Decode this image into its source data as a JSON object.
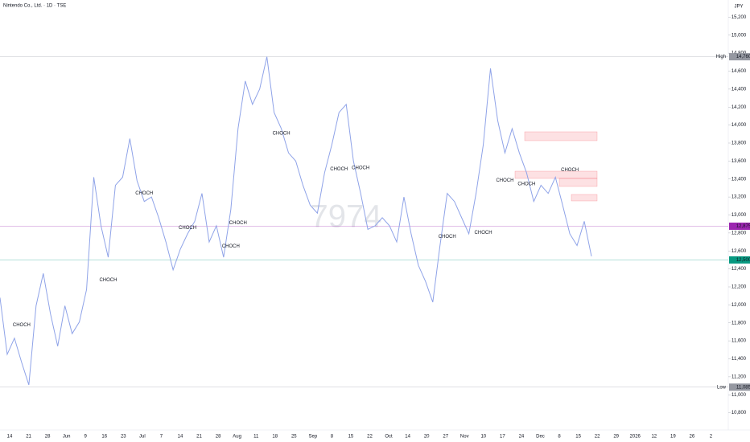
{
  "chart_data": {
    "type": "line",
    "title": "Nintendo Co., Ltd. · 1D · TSE",
    "watermark": "7974",
    "currency": "JPY",
    "color": "#8fa3e8",
    "values": [
      12080,
      11450,
      11630,
      11360,
      11110,
      11990,
      12350,
      11900,
      11540,
      11990,
      11680,
      11810,
      12170,
      13420,
      12880,
      12530,
      13330,
      13420,
      13850,
      13380,
      13150,
      13200,
      12970,
      12700,
      12390,
      12620,
      12790,
      12930,
      13240,
      12700,
      12880,
      12530,
      13060,
      13960,
      14490,
      14230,
      14400,
      14760,
      14140,
      13960,
      13690,
      13600,
      13330,
      13110,
      13020,
      13470,
      13780,
      14140,
      14230,
      13600,
      13240,
      12840,
      12880,
      12970,
      12880,
      12700,
      13200,
      12790,
      12440,
      12260,
      12030,
      12660,
      13240,
      13150,
      12970,
      12790,
      13240,
      13780,
      14630,
      14050,
      13690,
      13960,
      13690,
      13470,
      13150,
      13330,
      13240,
      13420,
      13110,
      12790,
      12660,
      12930,
      12540
    ],
    "ylim": [
      10600,
      15400
    ],
    "yticks": [
      {
        "value": 10800,
        "label": "10,800"
      },
      {
        "value": 11000,
        "label": "11,000"
      },
      {
        "value": 11200,
        "label": "11,200"
      },
      {
        "value": 11400,
        "label": "11,400"
      },
      {
        "value": 11600,
        "label": "11,600"
      },
      {
        "value": 11800,
        "label": "11,800"
      },
      {
        "value": 12000,
        "label": "12,000"
      },
      {
        "value": 12200,
        "label": "12,200"
      },
      {
        "value": 12400,
        "label": "12,400"
      },
      {
        "value": 12600,
        "label": "12,600"
      },
      {
        "value": 12800,
        "label": "12,800"
      },
      {
        "value": 13000,
        "label": "13,000"
      },
      {
        "value": 13200,
        "label": "13,200"
      },
      {
        "value": 13400,
        "label": "13,400"
      },
      {
        "value": 13600,
        "label": "13,600"
      },
      {
        "value": 13800,
        "label": "13,800"
      },
      {
        "value": 14000,
        "label": "14,000"
      },
      {
        "value": 14200,
        "label": "14,200"
      },
      {
        "value": 14400,
        "label": "14,400"
      },
      {
        "value": 14600,
        "label": "14,600"
      },
      {
        "value": 14800,
        "label": "14,800"
      },
      {
        "value": 15000,
        "label": "15,000"
      },
      {
        "value": 15200,
        "label": "15,200"
      }
    ],
    "x_labels": [
      "14",
      "21",
      "28",
      "Jun",
      "9",
      "16",
      "23",
      "Jul",
      "7",
      "14",
      "21",
      "28",
      "Aug",
      "11",
      "18",
      "25",
      "Sep",
      "8",
      "15",
      "22",
      "Oct",
      "14",
      "20",
      "27",
      "Nov",
      "10",
      "17",
      "24",
      "Dec",
      "8",
      "15",
      "22",
      "29",
      "2026",
      "12",
      "19",
      "26",
      "2"
    ],
    "levels": [
      {
        "name": "High",
        "value": 14760,
        "label": "14,760",
        "color": "#9598a1"
      },
      {
        "value": 12875,
        "label": "12,875",
        "color": "#9c27b0"
      },
      {
        "value": 12500,
        "label": "12,500",
        "color": "#089981"
      },
      {
        "name": "Low",
        "value": 11085,
        "label": "11,085",
        "color": "#9598a1"
      }
    ],
    "annotations": [
      {
        "text": "CHOCH",
        "index": 3,
        "value": 11740,
        "color": "#089981"
      },
      {
        "text": "CHOCH",
        "index": 15,
        "value": 12240,
        "color": "#089981"
      },
      {
        "text": "CHOCH",
        "index": 20,
        "value": 13205,
        "color": "#f23645"
      },
      {
        "text": "CHOCH",
        "index": 26,
        "value": 12820,
        "color": "#089981"
      },
      {
        "text": "CHOCH",
        "index": 32,
        "value": 12615,
        "color": "#f23645"
      },
      {
        "text": "CHOCH",
        "index": 33,
        "value": 12875,
        "color": "#089981"
      },
      {
        "text": "CHOCH",
        "index": 39,
        "value": 13870,
        "color": "#f23645"
      },
      {
        "text": "CHOCH",
        "index": 47,
        "value": 13475,
        "color": "#089981"
      },
      {
        "text": "CHOCH",
        "index": 50,
        "value": 13490,
        "color": "#f23645"
      },
      {
        "text": "CHOCH",
        "index": 62,
        "value": 12725,
        "color": "#089981"
      },
      {
        "text": "CHOCH",
        "index": 67,
        "value": 12770,
        "color": "#f23645"
      },
      {
        "text": "CHOCH",
        "index": 70,
        "value": 13350,
        "color": "#089981"
      },
      {
        "text": "CHOCH",
        "index": 73,
        "value": 13310,
        "color": "#f23645"
      },
      {
        "text": "CHOCH",
        "index": 79,
        "value": 13465,
        "color": "#089981"
      }
    ]
  }
}
